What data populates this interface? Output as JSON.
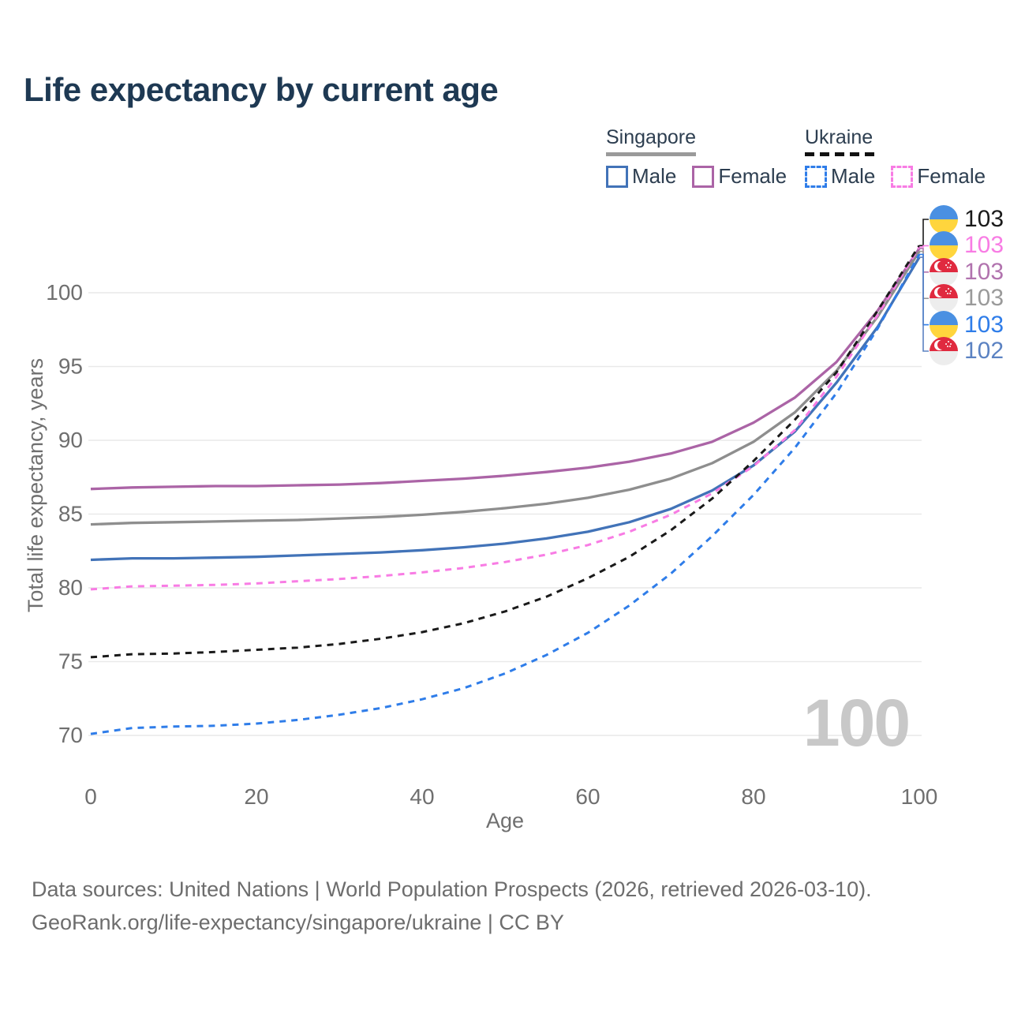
{
  "title": "Life expectancy by current age",
  "legend": {
    "groups": [
      {
        "title": "Singapore",
        "line_style": "solid",
        "underline_color": "#9a9a9a",
        "items": [
          {
            "label": "Male",
            "color": "#4273b8"
          },
          {
            "label": "Female",
            "color": "#ab64a6"
          }
        ]
      },
      {
        "title": "Ukraine",
        "line_style": "dashed",
        "underline_color": "#111111",
        "items": [
          {
            "label": "Male",
            "color": "#2f7de9"
          },
          {
            "label": "Female",
            "color": "#f87ce4"
          }
        ]
      }
    ]
  },
  "chart_data": {
    "type": "line",
    "title": "Life expectancy by current age",
    "xlabel": "Age",
    "ylabel": "Total life expectancy, years",
    "x": [
      0,
      5,
      10,
      15,
      20,
      25,
      30,
      35,
      40,
      45,
      50,
      55,
      60,
      65,
      70,
      75,
      80,
      85,
      90,
      95,
      100
    ],
    "xticks": [
      0,
      20,
      40,
      60,
      80,
      100
    ],
    "yticks": [
      70,
      75,
      80,
      85,
      90,
      95,
      100
    ],
    "xlim": [
      0,
      100
    ],
    "ylim": [
      68.5,
      104
    ],
    "grid": "horizontal",
    "legend_position": "top-right",
    "watermark": "100",
    "series": [
      {
        "name": "Singapore Female",
        "color": "#ab64a6",
        "dash": false,
        "values": [
          86.7,
          86.8,
          86.85,
          86.9,
          86.9,
          86.95,
          87.0,
          87.1,
          87.25,
          87.4,
          87.6,
          87.85,
          88.15,
          88.55,
          89.1,
          89.9,
          91.2,
          92.9,
          95.3,
          98.8,
          103.0
        ]
      },
      {
        "name": "Singapore (both sexes)",
        "color": "#8e8e8e",
        "dash": false,
        "values": [
          84.3,
          84.4,
          84.45,
          84.5,
          84.55,
          84.6,
          84.7,
          84.8,
          84.95,
          85.15,
          85.4,
          85.7,
          86.1,
          86.65,
          87.4,
          88.45,
          89.9,
          91.9,
          94.7,
          98.4,
          102.8
        ]
      },
      {
        "name": "Singapore Male",
        "color": "#4273b8",
        "dash": false,
        "values": [
          81.9,
          82.0,
          82.0,
          82.05,
          82.1,
          82.2,
          82.3,
          82.4,
          82.55,
          82.75,
          83.0,
          83.35,
          83.8,
          84.45,
          85.35,
          86.6,
          88.3,
          90.6,
          93.9,
          97.7,
          102.4
        ]
      },
      {
        "name": "Ukraine Female",
        "color": "#f87ce4",
        "dash": true,
        "values": [
          79.9,
          80.1,
          80.15,
          80.2,
          80.3,
          80.45,
          80.6,
          80.8,
          81.05,
          81.35,
          81.75,
          82.25,
          82.9,
          83.8,
          84.95,
          86.4,
          88.25,
          90.7,
          94.3,
          98.5,
          103.1
        ]
      },
      {
        "name": "Ukraine (both sexes)",
        "color": "#1a1a1a",
        "dash": true,
        "values": [
          75.3,
          75.5,
          75.55,
          75.65,
          75.8,
          75.95,
          76.2,
          76.55,
          77.0,
          77.6,
          78.4,
          79.4,
          80.65,
          82.1,
          83.9,
          86.05,
          88.6,
          91.4,
          94.6,
          98.8,
          103.2
        ]
      },
      {
        "name": "Ukraine Male",
        "color": "#2f7de9",
        "dash": true,
        "values": [
          70.1,
          70.5,
          70.6,
          70.65,
          70.8,
          71.05,
          71.4,
          71.85,
          72.45,
          73.2,
          74.2,
          75.45,
          76.95,
          78.8,
          80.95,
          83.5,
          86.3,
          89.5,
          93.2,
          97.6,
          102.6
        ]
      }
    ]
  },
  "end_labels": [
    {
      "flag": "ua",
      "value": "103",
      "color": "#1a1a1a",
      "series": "Ukraine (both sexes)"
    },
    {
      "flag": "ua",
      "value": "103",
      "color": "#f87ce4",
      "series": "Ukraine Female"
    },
    {
      "flag": "sg",
      "value": "103",
      "color": "#b173ae",
      "series": "Singapore Female"
    },
    {
      "flag": "sg",
      "value": "103",
      "color": "#9a9a9a",
      "series": "Singapore (both sexes)"
    },
    {
      "flag": "ua",
      "value": "103",
      "color": "#2f7de9",
      "series": "Ukraine Male"
    },
    {
      "flag": "sg",
      "value": "102",
      "color": "#5b82c2",
      "series": "Singapore Male"
    }
  ],
  "sources": {
    "line1": "Data sources: United Nations | World Population Prospects (2026, retrieved 2026-03-10).",
    "line2": "GeoRank.org/life-expectancy/singapore/ukraine | CC BY"
  }
}
